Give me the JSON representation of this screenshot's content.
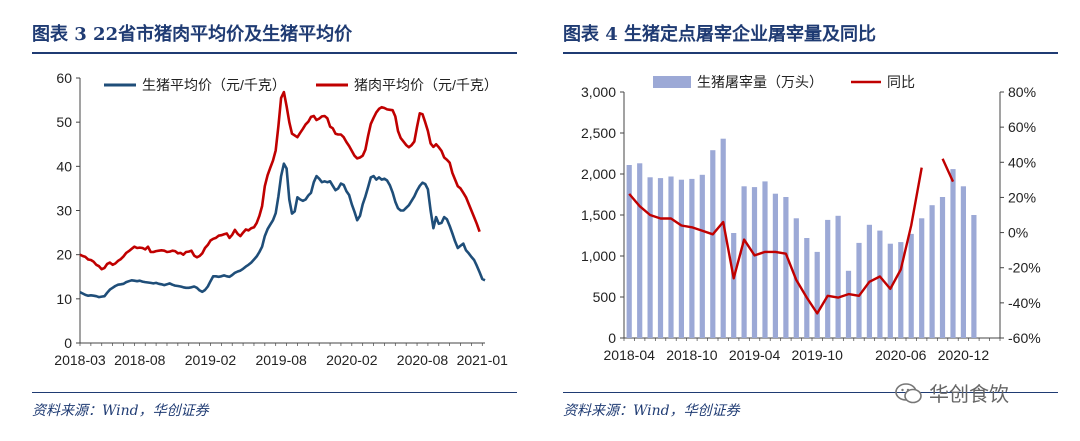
{
  "left": {
    "title": "图表 3 22省市猪肉平均价及生猪平均价",
    "source": "资料来源：Wind，华创证券"
  },
  "right": {
    "title": "图表 4 生猪定点屠宰企业屠宰量及同比",
    "source": "资料来源：Wind，华创证券"
  },
  "watermark": "华创食饮",
  "chart_data": [
    {
      "type": "line",
      "title": "22省市猪肉平均价及生猪平均价",
      "ylim": [
        0,
        60
      ],
      "y_ticks": [
        "0",
        "10",
        "20",
        "30",
        "40",
        "50",
        "60"
      ],
      "x_ticks": [
        "2018-03",
        "2018-08",
        "2019-02",
        "2019-08",
        "2020-02",
        "2020-08",
        "2021-01"
      ],
      "x_tick_weeks": [
        0,
        22,
        48,
        74,
        100,
        126,
        148
      ],
      "legend_position": "top",
      "series": [
        {
          "name": "生猪平均价（元/千克）",
          "color": "#1f4e79",
          "values": [
            11.5,
            11.2,
            10.9,
            10.7,
            10.8,
            10.7,
            10.6,
            10.4,
            10.5,
            10.6,
            11.4,
            12.1,
            12.5,
            12.9,
            13.2,
            13.3,
            13.4,
            13.8,
            14.0,
            14.2,
            14.1,
            14.0,
            14.1,
            13.9,
            13.8,
            13.7,
            13.6,
            13.5,
            13.6,
            13.4,
            13.3,
            13.1,
            13.3,
            13.5,
            13.2,
            13.0,
            12.9,
            12.8,
            12.6,
            12.5,
            12.5,
            12.6,
            12.8,
            12.5,
            11.9,
            11.6,
            12.0,
            12.8,
            14.0,
            15.1,
            15.1,
            15.0,
            15.1,
            15.3,
            15.1,
            15.0,
            15.4,
            15.9,
            16.2,
            16.4,
            16.8,
            17.3,
            17.7,
            18.2,
            18.9,
            19.6,
            20.6,
            21.8,
            24.2,
            25.8,
            26.8,
            27.8,
            29.4,
            33.2,
            37.8,
            40.6,
            39.5,
            32.5,
            29.3,
            29.8,
            33.0,
            32.5,
            32.2,
            32.5,
            33.4,
            34.0,
            36.4,
            37.8,
            37.2,
            36.4,
            36.6,
            36.4,
            36.6,
            35.6,
            34.6,
            35.0,
            36.1,
            35.8,
            34.4,
            33.5,
            31.4,
            29.7,
            27.8,
            28.8,
            31.4,
            33.2,
            35.3,
            37.5,
            37.8,
            37.0,
            37.5,
            37.0,
            37.2,
            36.8,
            35.7,
            34.1,
            32.0,
            30.5,
            30.0,
            30.0,
            30.6,
            31.2,
            32.2,
            33.2,
            34.5,
            35.6,
            36.3,
            36.0,
            34.8,
            30.0,
            26.0,
            28.5,
            27.0,
            27.2,
            28.5,
            28.0,
            26.5,
            24.8,
            23.0,
            21.5,
            22.0,
            22.5,
            21.0,
            20.3,
            19.5,
            18.8,
            17.5,
            16.0,
            14.5,
            14.2
          ]
        },
        {
          "name": "猪肉平均价（元/千克）",
          "color": "#c00000",
          "values": [
            20.0,
            19.7,
            19.5,
            18.9,
            18.8,
            18.4,
            17.7,
            17.4,
            16.7,
            17.0,
            17.9,
            18.2,
            17.7,
            18.0,
            18.6,
            19.0,
            19.6,
            20.4,
            20.8,
            21.3,
            21.8,
            21.5,
            21.6,
            21.5,
            21.2,
            21.8,
            20.6,
            20.6,
            20.8,
            20.9,
            21.0,
            20.9,
            20.6,
            20.7,
            20.9,
            20.8,
            20.3,
            20.4,
            20.0,
            20.6,
            20.7,
            20.9,
            19.8,
            19.4,
            19.7,
            20.3,
            21.5,
            22.2,
            23.2,
            23.6,
            23.8,
            24.3,
            24.4,
            24.6,
            24.8,
            23.8,
            24.5,
            25.6,
            24.7,
            24.2,
            25.0,
            25.7,
            25.5,
            26.0,
            26.2,
            27.2,
            28.8,
            31.0,
            35.5,
            38.0,
            39.7,
            41.3,
            43.6,
            49.1,
            55.5,
            56.8,
            53.6,
            50.0,
            47.4,
            47.0,
            46.6,
            47.6,
            48.5,
            49.5,
            50.1,
            51.2,
            51.4,
            50.5,
            50.8,
            51.3,
            51.4,
            50.9,
            49.0,
            48.6,
            47.4,
            47.2,
            47.2,
            46.6,
            45.5,
            44.6,
            43.5,
            42.4,
            41.8,
            42.0,
            42.4,
            43.8,
            46.9,
            49.6,
            51.0,
            52.2,
            53.0,
            53.4,
            53.2,
            52.9,
            52.8,
            52.7,
            51.3,
            48.0,
            46.4,
            45.6,
            44.8,
            44.3,
            44.8,
            45.6,
            48.9,
            52.0,
            51.8,
            50.0,
            48.0,
            45.2,
            44.4,
            45.0,
            44.3,
            43.5,
            42.0,
            41.5,
            40.8,
            38.5,
            37.0,
            35.5,
            35.0,
            34.0,
            33.0,
            31.5,
            30.0,
            28.5,
            27.0,
            25.2
          ]
        }
      ]
    },
    {
      "type": "bar",
      "title": "生猪定点屠宰企业屠宰量及同比",
      "categories": [
        "2018-04",
        "2018-05",
        "2018-06",
        "2018-07",
        "2018-08",
        "2018-09",
        "2018-10",
        "2018-11",
        "2018-12",
        "2019-01",
        "2019-02",
        "2019-03",
        "2019-04",
        "2019-05",
        "2019-06",
        "2019-07",
        "2019-08",
        "2019-09",
        "2019-10",
        "2019-11",
        "2019-12",
        "2020-01",
        "2020-02",
        "2020-03",
        "2020-04",
        "2020-05",
        "2020-06",
        "2020-07",
        "2020-08",
        "2020-09",
        "2020-10",
        "2020-11",
        "2020-12",
        "2021-01",
        "2021-02",
        "2021-03"
      ],
      "x_ticks": [
        "2018-04",
        "2018-10",
        "2019-04",
        "2019-10",
        "2020-06",
        "2020-12"
      ],
      "x_tick_index": [
        0,
        6,
        12,
        18,
        26,
        32
      ],
      "ylim": [
        0,
        3000
      ],
      "y_ticks": [
        "0",
        "500",
        "1,000",
        "1,500",
        "2,000",
        "2,500",
        "3,000"
      ],
      "y2lim": [
        -60,
        80
      ],
      "y2_ticks": [
        "-60%",
        "-40%",
        "-20%",
        "0%",
        "20%",
        "40%",
        "60%",
        "80%"
      ],
      "legend_position": "top",
      "series": [
        {
          "name": "生猪屠宰量（万头）",
          "axis": "left",
          "color": "#9ca9d6",
          "values": [
            2110,
            2130,
            1960,
            1950,
            1970,
            1930,
            1940,
            1990,
            2290,
            2430,
            1280,
            1850,
            1840,
            1910,
            1760,
            1720,
            1460,
            1220,
            1050,
            1440,
            1490,
            820,
            1160,
            1380,
            1310,
            1150,
            1170,
            1270,
            1460,
            1620,
            1720,
            2060,
            1850,
            1500,
            null,
            null
          ]
        },
        {
          "name": "同比",
          "axis": "right",
          "color": "#c00000",
          "values": [
            22,
            15,
            10,
            8,
            8,
            4,
            3,
            1,
            -1,
            6,
            -26,
            -4,
            -13,
            -11,
            -11,
            -12,
            -27,
            -37,
            -46,
            -36,
            -37,
            -35,
            -36,
            -28,
            -25,
            -32,
            -21,
            4,
            37,
            null,
            42,
            29,
            null,
            null,
            null,
            null
          ]
        }
      ]
    }
  ]
}
